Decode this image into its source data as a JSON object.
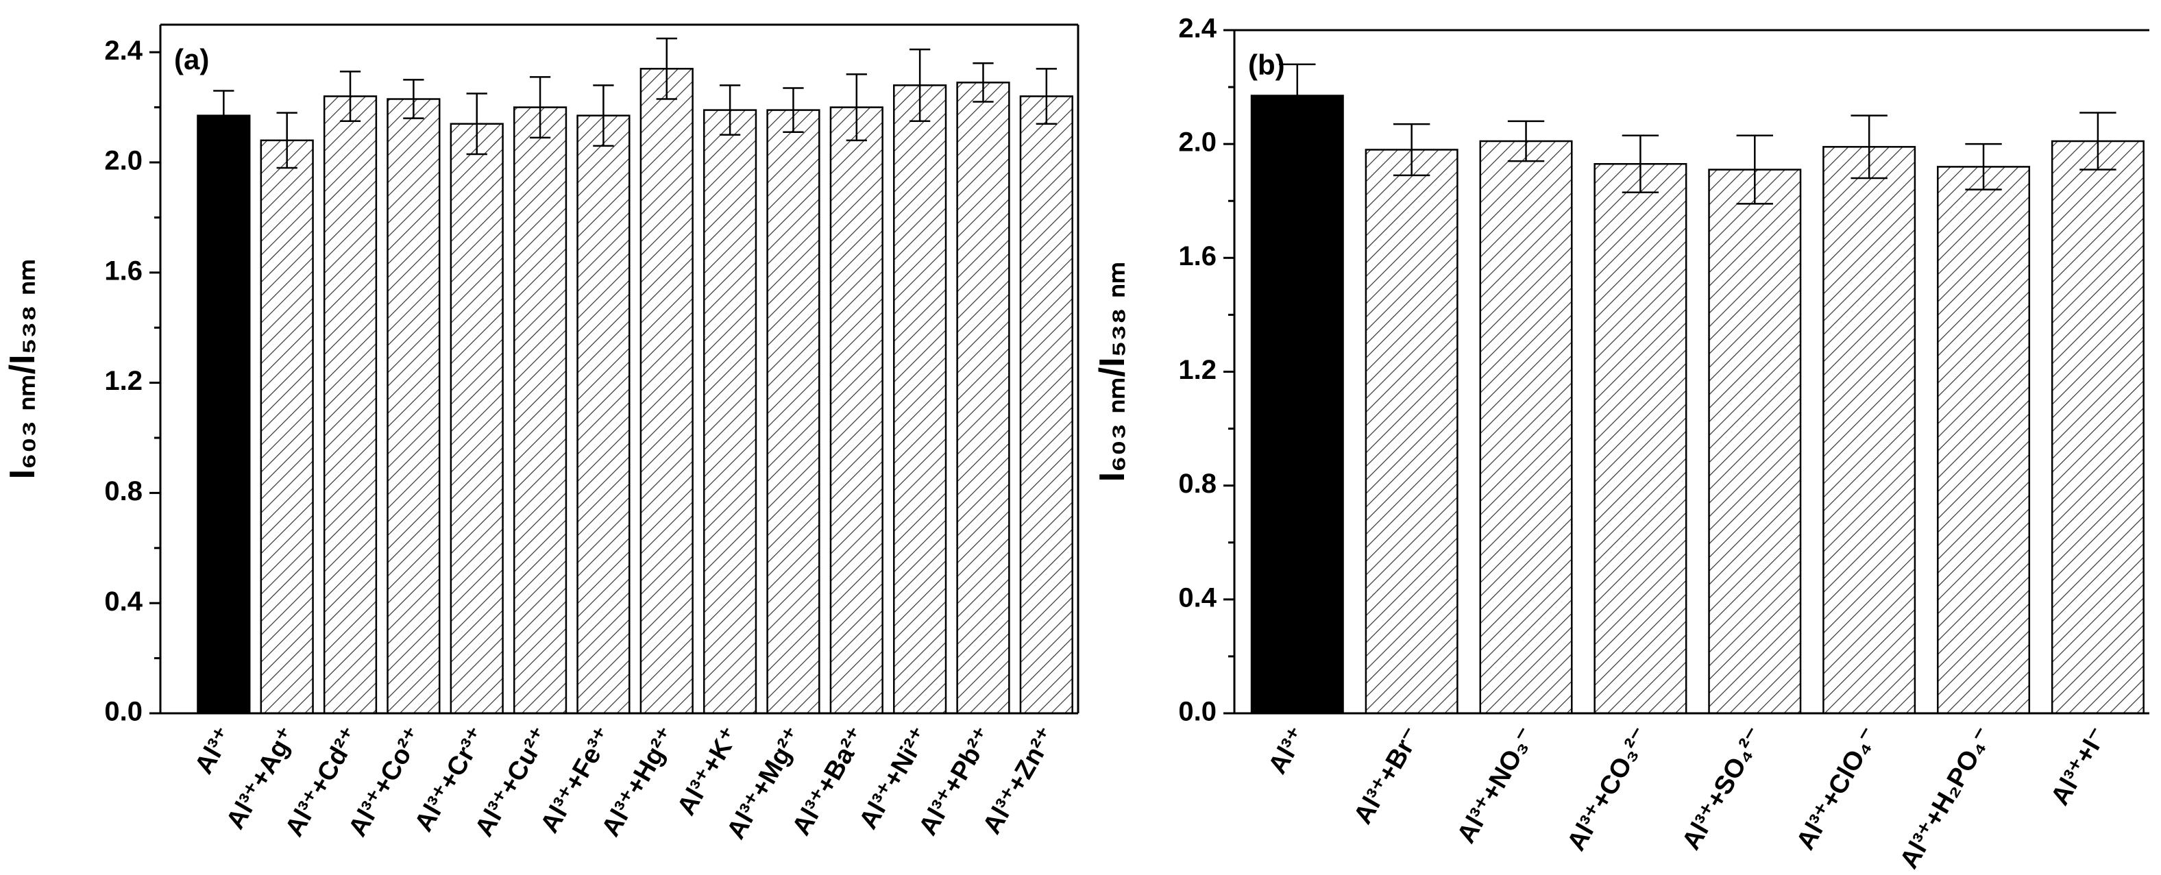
{
  "chart_data": [
    {
      "type": "bar",
      "annotation": "(a)",
      "ylabel": "I₆₀₃ ₙₘ/I₅₃₈ ₙₘ",
      "categories": [
        "Al³⁺",
        "Al³⁺+Ag⁺",
        "Al³⁺+Cd²⁺",
        "Al³⁺+Co²⁺",
        "Al³⁺+Cr³⁺",
        "Al³⁺+Cu²⁺",
        "Al³⁺+Fe³⁺",
        "Al³⁺+Hg²⁺",
        "Al³⁺+K⁺",
        "Al³⁺+Mg²⁺",
        "Al³⁺+Ba²⁺",
        "Al³⁺+Ni²⁺",
        "Al³⁺+Pb²⁺",
        "Al³⁺+Zn²⁺"
      ],
      "values": [
        2.17,
        2.08,
        2.24,
        2.23,
        2.14,
        2.2,
        2.17,
        2.34,
        2.19,
        2.19,
        2.2,
        2.28,
        2.29,
        2.24
      ],
      "errors": [
        0.09,
        0.1,
        0.09,
        0.07,
        0.11,
        0.11,
        0.11,
        0.11,
        0.09,
        0.08,
        0.12,
        0.13,
        0.07,
        0.1
      ],
      "patterns": [
        "solid",
        "hatch",
        "hatch",
        "hatch",
        "hatch",
        "hatch",
        "hatch",
        "hatch",
        "hatch",
        "hatch",
        "hatch",
        "hatch",
        "hatch",
        "hatch"
      ],
      "color": "#000000",
      "ylim": [
        0,
        2.5
      ],
      "yticks": [
        {
          "value": 0,
          "label": "0.0"
        },
        0.4,
        0.8,
        1.2,
        1.6,
        {
          "value": 2,
          "label": "2.0"
        },
        2.4
      ],
      "yminorticks": [
        0.2,
        0.6,
        1.0,
        1.4,
        1.8,
        2.2
      ]
    },
    {
      "type": "bar",
      "annotation": "(b)",
      "ylabel": "I₆₀₃ ₙₘ/I₅₃₈ ₙₘ",
      "categories": [
        "Al³⁺",
        "Al³⁺+Br⁻",
        "Al³⁺+NO₃⁻",
        "Al³⁺+CO₃²⁻",
        "Al³⁺+SO₄²⁻",
        "Al³⁺+ClO₄⁻",
        "Al³⁺+H₂PO₄⁻",
        "Al³⁺+I⁻"
      ],
      "values": [
        2.17,
        1.98,
        2.01,
        1.93,
        1.91,
        1.99,
        1.92,
        2.01
      ],
      "errors": [
        0.11,
        0.09,
        0.07,
        0.1,
        0.12,
        0.11,
        0.08,
        0.1
      ],
      "patterns": [
        "solid",
        "hatch",
        "hatch",
        "hatch",
        "hatch",
        "hatch",
        "hatch",
        "hatch"
      ],
      "color": "#000000",
      "ylim": [
        0,
        2.4
      ],
      "yticks": [
        {
          "value": 0,
          "label": "0.0"
        },
        0.4,
        0.8,
        1.2,
        1.6,
        {
          "value": 2,
          "label": "2.0"
        },
        2.4
      ],
      "yminorticks": [
        0.2,
        0.6,
        1.0,
        1.4,
        1.8,
        2.2
      ]
    }
  ]
}
